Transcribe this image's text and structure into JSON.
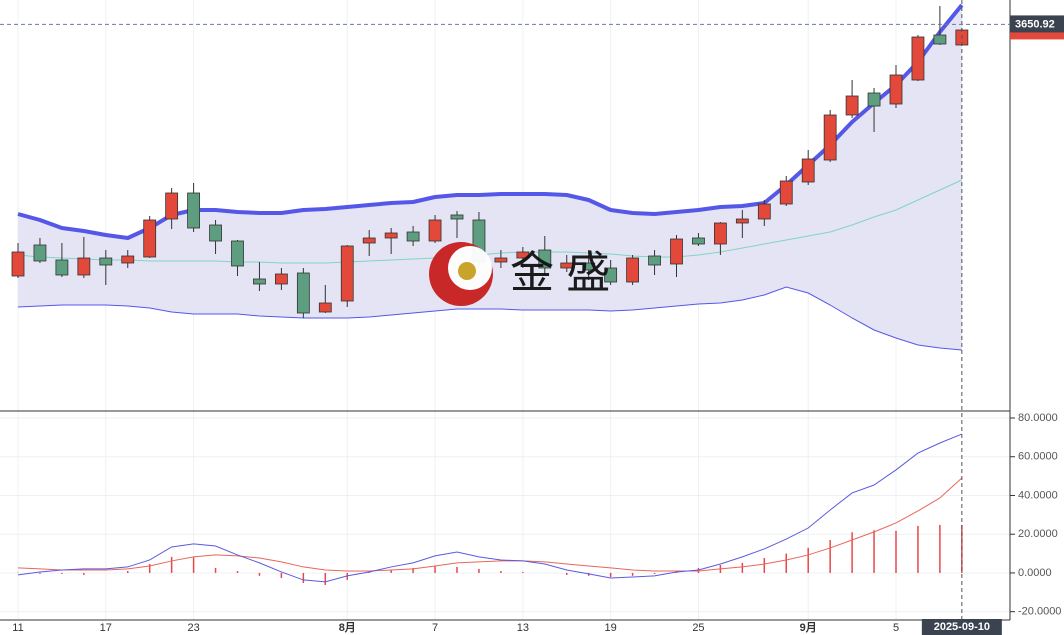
{
  "chart_data": [
    {
      "type": "candlestick",
      "categories": [
        "11",
        null,
        null,
        null,
        "17",
        null,
        null,
        null,
        "23",
        null,
        null,
        null,
        null,
        null,
        null,
        "8月",
        null,
        null,
        null,
        "7",
        null,
        null,
        null,
        "13",
        null,
        null,
        null,
        "19",
        null,
        null,
        null,
        "25",
        null,
        null,
        null,
        null,
        "9月",
        null,
        null,
        null,
        "5",
        null,
        null,
        null
      ],
      "open": [
        3248.4,
        3298,
        3274,
        3250,
        3277.2,
        3269.2,
        3278.8,
        3339.6,
        3381.2,
        3330,
        3304.4,
        3243.6,
        3235.6,
        3253.2,
        3190.8,
        3208.4,
        3301.2,
        3309.2,
        3318.8,
        3304.4,
        3346,
        3338,
        3270.8,
        3277.2,
        3290,
        3261.2,
        3269.2,
        3261.2,
        3238.8,
        3280.4,
        3267.6,
        3309.2,
        3299.6,
        3333.2,
        3339.6,
        3363.6,
        3398.8,
        3434,
        3506,
        3541.2,
        3523.6,
        3562,
        3634,
        3618
      ],
      "high": [
        3301.2,
        3309.2,
        3301.2,
        3310.8,
        3290,
        3290,
        3344.4,
        3389.2,
        3397.2,
        3338,
        3306,
        3270.8,
        3261.2,
        3261.2,
        3234,
        3298,
        3322,
        3325.2,
        3328.4,
        3346,
        3352.4,
        3350.8,
        3290,
        3294.8,
        3312.4,
        3282,
        3290,
        3274,
        3282,
        3290,
        3314,
        3317.2,
        3334.8,
        3354,
        3370,
        3408.4,
        3450,
        3514,
        3562,
        3549.2,
        3586,
        3634,
        3680.4,
        3645.2
      ],
      "low": [
        3245.2,
        3269.2,
        3246.8,
        3245.2,
        3234,
        3261.2,
        3277.2,
        3323.6,
        3318.8,
        3283.6,
        3248.4,
        3224.4,
        3226,
        3181.2,
        3189.2,
        3198.8,
        3280.4,
        3283.6,
        3296.4,
        3301.2,
        3309.2,
        3261.2,
        3261.2,
        3261.2,
        3250,
        3254.8,
        3242,
        3234,
        3234,
        3250,
        3246.8,
        3296.4,
        3282,
        3309.2,
        3328.4,
        3360.4,
        3394,
        3430.8,
        3501.2,
        3478.8,
        3517.2,
        3560.4,
        3618,
        3616.4
      ],
      "close": [
        3286.8,
        3272.4,
        3250,
        3277.2,
        3266,
        3280.4,
        3338,
        3381.2,
        3325.2,
        3304.4,
        3264.4,
        3235.6,
        3251.6,
        3189.2,
        3205.2,
        3296.4,
        3309.2,
        3317.2,
        3304.4,
        3338,
        3339.6,
        3270.8,
        3277.2,
        3286.8,
        3261.2,
        3269.2,
        3258,
        3238.8,
        3277.2,
        3266,
        3307.6,
        3299.6,
        3333.2,
        3339.6,
        3363.6,
        3400.4,
        3435.6,
        3506,
        3536.4,
        3520.4,
        3570,
        3630.8,
        3619.6,
        3642
      ],
      "up_color": "#e2493b",
      "down_color": "#5e9e80",
      "bands": {
        "upper": [
          3347.6,
          3338,
          3325.2,
          3320.4,
          3314,
          3309.2,
          3325.2,
          3346,
          3354,
          3354,
          3350.8,
          3349.2,
          3349.2,
          3354,
          3355.6,
          3358.8,
          3362,
          3365.2,
          3366.8,
          3374.8,
          3378,
          3378,
          3379.6,
          3379.6,
          3379.6,
          3378,
          3370,
          3354,
          3349.2,
          3347.6,
          3350.8,
          3354,
          3358.8,
          3360.4,
          3365.2,
          3394,
          3426,
          3458,
          3494.8,
          3525.2,
          3554,
          3590.8,
          3638.8,
          3682
        ],
        "middle": [
          3282,
          3278.8,
          3277.2,
          3275.6,
          3274,
          3274,
          3272.4,
          3272.4,
          3272.4,
          3272.4,
          3270.8,
          3270.8,
          3269.2,
          3269.2,
          3269.2,
          3270.8,
          3272.4,
          3274,
          3275.6,
          3277.2,
          3278.8,
          3282,
          3285.2,
          3286.8,
          3286.8,
          3286.8,
          3285.2,
          3283.6,
          3280.4,
          3278.8,
          3278.8,
          3282,
          3286.8,
          3293.2,
          3299.6,
          3306,
          3312.4,
          3318.8,
          3330,
          3342.8,
          3354,
          3370,
          3386,
          3402
        ],
        "lower": [
          3198.8,
          3200.4,
          3202,
          3202,
          3202,
          3200.4,
          3197.2,
          3190.8,
          3187.6,
          3187.6,
          3187.6,
          3184.4,
          3182.8,
          3181.2,
          3181.2,
          3181.2,
          3182.8,
          3186,
          3189.2,
          3192.4,
          3195.6,
          3195.6,
          3195.6,
          3194,
          3194,
          3194,
          3194,
          3192.4,
          3194,
          3197.2,
          3200.4,
          3203.6,
          3205.2,
          3210,
          3218,
          3230.8,
          3221.2,
          3202,
          3181.2,
          3162,
          3149.2,
          3138,
          3133.2,
          3130
        ],
        "upper_color": "#5557e8",
        "middle_color": "#7fd6c4",
        "lower_color": "#5557e8",
        "fill": "#e4e4f4"
      },
      "ylim": [
        3034,
        3690
      ],
      "crosshair": {
        "index": 43,
        "date": "2025-09-10",
        "price": 3650.92
      },
      "watermark": "金 盛"
    },
    {
      "type": "macd",
      "dif": [
        -1.0,
        0.5,
        1.5,
        2.1,
        2.1,
        3.1,
        6.7,
        13.4,
        15.0,
        13.9,
        9.3,
        5.2,
        0.5,
        -3.6,
        -4.6,
        -1.5,
        0.5,
        3.1,
        5.2,
        8.8,
        10.8,
        8.3,
        6.7,
        6.2,
        4.6,
        1.5,
        -0.5,
        -2.6,
        -2.1,
        -1.5,
        0.5,
        1.5,
        4.6,
        8.3,
        12.4,
        17.5,
        23.2,
        32.5,
        41.3,
        45.4,
        53.2,
        61.9,
        67.1,
        71.7
      ],
      "dea": [
        2.6,
        2.1,
        1.5,
        1.5,
        1.5,
        2.1,
        3.6,
        6.2,
        8.3,
        9.3,
        8.8,
        7.7,
        5.7,
        3.1,
        1.5,
        1.0,
        1.0,
        1.5,
        2.1,
        3.6,
        5.2,
        5.7,
        6.2,
        6.2,
        5.7,
        4.6,
        3.6,
        2.6,
        1.5,
        1.0,
        1.0,
        1.0,
        2.1,
        3.1,
        4.6,
        6.7,
        9.3,
        12.9,
        17.0,
        21.2,
        25.8,
        32.0,
        38.7,
        49.0
      ],
      "hist": [
        0.2,
        -0.5,
        -0.5,
        -1.0,
        0,
        1.0,
        4.6,
        8.3,
        8.3,
        2.6,
        1.0,
        -1.5,
        -2.6,
        -5.2,
        -6.2,
        -3.6,
        0.5,
        1.5,
        2.6,
        3.6,
        3.1,
        2.1,
        1.0,
        0.5,
        0,
        -1.0,
        -1.5,
        -2.1,
        -1.5,
        -0.5,
        1.0,
        2.6,
        4.1,
        5.2,
        7.7,
        10.0,
        13.0,
        17.0,
        21.0,
        22.0,
        21.7,
        24.3,
        24.8,
        24.8
      ],
      "dif_color": "#5a5ae0",
      "dea_color": "#e8665a",
      "hist_color": "#e8464a",
      "ylim": [
        -24.3,
        83.1
      ],
      "yticks": [
        {
          "value": 80,
          "label": "80.0000"
        },
        {
          "value": 60,
          "label": "60.0000"
        },
        {
          "value": 40,
          "label": "40.0000"
        },
        {
          "value": 20,
          "label": "20.0000"
        },
        {
          "value": 0,
          "label": "0.0000"
        },
        {
          "value": -20,
          "label": "-20.0000"
        }
      ],
      "grid": true
    }
  ]
}
